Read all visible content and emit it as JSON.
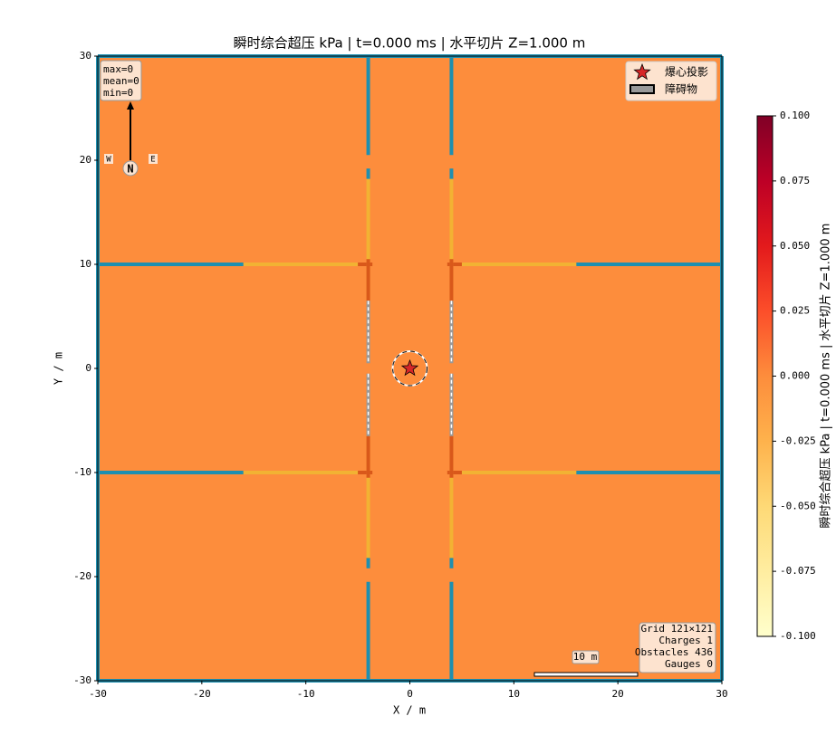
{
  "chart_data": {
    "type": "heatmap",
    "title": "瞬时综合超压 kPa  |  t=0.000 ms  |  水平切片 Z=1.000 m",
    "xlabel": "X / m",
    "ylabel": "Y / m",
    "xlim": [
      -30,
      30
    ],
    "ylim": [
      -30,
      30
    ],
    "xticks": [
      -30,
      -20,
      -10,
      0,
      10,
      20,
      30
    ],
    "yticks": [
      -30,
      -20,
      -10,
      0,
      10,
      20,
      30
    ],
    "field_value": 0,
    "colormap": "YlOrRd",
    "colorbar": {
      "label": "瞬时综合超压 kPa  |  t=0.000 ms  |  水平切片 Z=1.000 m",
      "lim": [
        -0.1,
        0.1
      ],
      "ticks": [
        {
          "value": -0.1,
          "label": "-0.100"
        },
        {
          "value": -0.075,
          "label": "-0.075"
        },
        {
          "value": -0.05,
          "label": "-0.050"
        },
        {
          "value": -0.025,
          "label": "-0.025"
        },
        {
          "value": 0,
          "label": "0.000"
        },
        {
          "value": 0.025,
          "label": "0.025"
        },
        {
          "value": 0.05,
          "label": "0.050"
        },
        {
          "value": 0.075,
          "label": "0.075"
        },
        {
          "value": 0.1,
          "label": "0.100"
        }
      ]
    },
    "charges": {
      "name": "爆心投影",
      "color": "#d62728",
      "x": [
        0
      ],
      "y": [
        0
      ]
    },
    "obstacles_name": "障碍物",
    "stats": [
      "max=0",
      "mean=0",
      "min=0"
    ],
    "compass": {
      "n": "N",
      "w": "W",
      "e": "E"
    },
    "scale_bar": "10 m",
    "info": [
      "Grid 121×121",
      "Charges 1",
      "Obstacles 436",
      "Gauges 0"
    ]
  }
}
